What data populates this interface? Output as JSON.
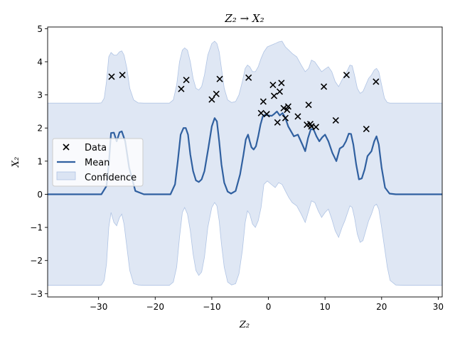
{
  "chart_data": {
    "type": "line",
    "title": "Z₂ → X₂",
    "xlabel": "Z₂",
    "ylabel": "X₂",
    "xlim": [
      -39,
      30.7
    ],
    "ylim": [
      -3.1,
      5.05
    ],
    "xticks": [
      -30,
      -20,
      -10,
      0,
      10,
      20,
      30
    ],
    "yticks": [
      -3,
      -2,
      -1,
      0,
      1,
      2,
      3,
      4,
      5
    ],
    "xtick_labels": [
      "−30",
      "−20",
      "−10",
      "0",
      "10",
      "20",
      "30"
    ],
    "ytick_labels": [
      "−3",
      "−2",
      "−1",
      "0",
      "1",
      "2",
      "3",
      "4",
      "5"
    ],
    "grid": false,
    "legend_position": "center-left",
    "legend": [
      {
        "kind": "marker",
        "label": "Data"
      },
      {
        "kind": "line",
        "label": "Mean"
      },
      {
        "kind": "patch",
        "label": "Confidence"
      }
    ],
    "colors": {
      "mean": "#3060a0",
      "confidence": "#b0c4e4",
      "data": "#000000"
    },
    "series": [
      {
        "name": "Data",
        "type": "scatter",
        "points": [
          [
            -27.7,
            3.55
          ],
          [
            -25.8,
            3.6
          ],
          [
            -15.4,
            3.18
          ],
          [
            -14.5,
            3.45
          ],
          [
            -10,
            2.86
          ],
          [
            -9.2,
            3.03
          ],
          [
            -8.6,
            3.48
          ],
          [
            -3.5,
            3.52
          ],
          [
            -1.3,
            2.45
          ],
          [
            -0.9,
            2.8
          ],
          [
            -0.3,
            2.42
          ],
          [
            0.8,
            3.3
          ],
          [
            1.0,
            2.97
          ],
          [
            1.6,
            2.17
          ],
          [
            2.0,
            3.1
          ],
          [
            2.3,
            3.36
          ],
          [
            2.7,
            2.6
          ],
          [
            3.0,
            2.3
          ],
          [
            3.3,
            2.55
          ],
          [
            3.5,
            2.65
          ],
          [
            5.2,
            2.35
          ],
          [
            6.8,
            2.1
          ],
          [
            7.1,
            2.7
          ],
          [
            7.4,
            2.12
          ],
          [
            7.6,
            2.05
          ],
          [
            8.4,
            2.03
          ],
          [
            9.8,
            3.25
          ],
          [
            11.9,
            2.23
          ],
          [
            13.8,
            3.6
          ],
          [
            17.3,
            1.97
          ],
          [
            19.0,
            3.4
          ]
        ]
      },
      {
        "name": "Mean",
        "type": "line",
        "x": [
          -39,
          -29.5,
          -28.6,
          -28.2,
          -27.8,
          -27.3,
          -26.8,
          -26.3,
          -25.9,
          -25.3,
          -24.6,
          -23.5,
          -22,
          -17.3,
          -16.5,
          -16,
          -15.5,
          -15,
          -14.6,
          -14.2,
          -13.8,
          -13.3,
          -12.8,
          -12.3,
          -11.8,
          -11.3,
          -10.6,
          -10,
          -9.5,
          -9.1,
          -8.7,
          -8.3,
          -7.8,
          -7.2,
          -6.6,
          -5.8,
          -5,
          -4.4,
          -4,
          -3.6,
          -3.3,
          -3,
          -2.6,
          -2.2,
          -1.8,
          -1.4,
          -1,
          -0.6,
          0,
          0.6,
          1,
          1.5,
          2,
          2.5,
          3,
          3.5,
          4,
          4.5,
          5.2,
          6,
          6.5,
          7,
          7.5,
          8,
          8.5,
          9,
          9.5,
          10,
          10.6,
          11.3,
          12,
          12.6,
          13.2,
          13.7,
          14.2,
          14.6,
          15,
          15.5,
          16,
          16.5,
          17,
          17.5,
          18.2,
          18.7,
          19.1,
          19.5,
          20,
          20.6,
          21.4,
          22.5,
          24,
          30.7
        ],
        "y": [
          0,
          0,
          0.25,
          0.9,
          1.85,
          1.86,
          1.6,
          1.87,
          1.9,
          1.6,
          0.8,
          0.1,
          0,
          0,
          0.3,
          1.0,
          1.8,
          2.0,
          2.0,
          1.8,
          1.2,
          0.7,
          0.42,
          0.37,
          0.45,
          0.7,
          1.4,
          2.05,
          2.3,
          2.2,
          1.6,
          0.9,
          0.35,
          0.08,
          0.02,
          0.1,
          0.6,
          1.2,
          1.65,
          1.8,
          1.6,
          1.42,
          1.35,
          1.45,
          1.75,
          2.1,
          2.35,
          2.4,
          2.38,
          2.37,
          2.42,
          2.5,
          2.38,
          2.45,
          2.3,
          2.05,
          1.9,
          1.75,
          1.8,
          1.5,
          1.3,
          1.7,
          1.97,
          1.95,
          1.75,
          1.6,
          1.72,
          1.8,
          1.6,
          1.25,
          1.0,
          1.38,
          1.45,
          1.6,
          1.83,
          1.82,
          1.5,
          0.9,
          0.45,
          0.48,
          0.75,
          1.15,
          1.3,
          1.6,
          1.75,
          1.5,
          0.8,
          0.2,
          0.02,
          0,
          0,
          0
        ]
      },
      {
        "name": "Confidence",
        "type": "band",
        "x": [
          -39,
          -30,
          -29.5,
          -29,
          -28.6,
          -28.2,
          -27.8,
          -27.3,
          -26.8,
          -26.3,
          -25.9,
          -25.5,
          -25,
          -24.5,
          -23.8,
          -23,
          -22,
          -17.5,
          -16.8,
          -16.2,
          -15.7,
          -15.2,
          -14.8,
          -14.3,
          -13.8,
          -13.3,
          -12.8,
          -12.3,
          -11.8,
          -11.3,
          -10.7,
          -10,
          -9.5,
          -9.1,
          -8.7,
          -8.3,
          -7.8,
          -7.2,
          -6.5,
          -5.8,
          -5.2,
          -4.6,
          -4.1,
          -3.7,
          -3.3,
          -2.8,
          -2.3,
          -1.8,
          -1.3,
          -0.8,
          -0.2,
          0.5,
          1.2,
          1.8,
          2.4,
          3.0,
          3.6,
          4.2,
          5.0,
          5.8,
          6.5,
          7.1,
          7.6,
          8.2,
          8.8,
          9.4,
          10,
          10.6,
          11.2,
          11.8,
          12.4,
          13.0,
          13.5,
          14.0,
          14.4,
          14.8,
          15.2,
          15.7,
          16.2,
          16.7,
          17.2,
          17.7,
          18.2,
          18.7,
          19.1,
          19.5,
          20,
          20.5,
          21,
          21.5,
          22.5,
          24,
          30.7
        ],
        "upper": [
          2.75,
          2.75,
          2.76,
          2.9,
          3.4,
          4.15,
          4.28,
          4.2,
          4.2,
          4.3,
          4.33,
          4.2,
          3.8,
          3.2,
          2.85,
          2.76,
          2.75,
          2.75,
          2.85,
          3.3,
          4.0,
          4.35,
          4.42,
          4.35,
          4.0,
          3.5,
          3.2,
          3.15,
          3.25,
          3.6,
          4.2,
          4.55,
          4.62,
          4.55,
          4.3,
          3.8,
          3.2,
          2.85,
          2.77,
          2.8,
          3.0,
          3.4,
          3.8,
          3.9,
          3.85,
          3.7,
          3.7,
          3.85,
          4.1,
          4.3,
          4.45,
          4.5,
          4.55,
          4.6,
          4.62,
          4.45,
          4.35,
          4.25,
          4.15,
          3.9,
          3.7,
          3.8,
          4.05,
          4.0,
          3.85,
          3.7,
          3.78,
          3.85,
          3.7,
          3.4,
          3.25,
          3.45,
          3.6,
          3.75,
          3.9,
          3.88,
          3.6,
          3.2,
          3.05,
          3.1,
          3.3,
          3.5,
          3.6,
          3.75,
          3.8,
          3.7,
          3.3,
          2.9,
          2.77,
          2.75,
          2.75,
          2.75,
          2.75
        ],
        "lower": [
          -2.75,
          -2.75,
          -2.74,
          -2.6,
          -2.1,
          -1.0,
          -0.55,
          -0.85,
          -0.95,
          -0.7,
          -0.6,
          -0.9,
          -1.6,
          -2.3,
          -2.7,
          -2.74,
          -2.75,
          -2.75,
          -2.65,
          -2.2,
          -1.3,
          -0.55,
          -0.4,
          -0.6,
          -1.1,
          -1.8,
          -2.3,
          -2.45,
          -2.35,
          -1.9,
          -1.0,
          -0.4,
          -0.25,
          -0.35,
          -0.8,
          -1.5,
          -2.2,
          -2.65,
          -2.74,
          -2.7,
          -2.4,
          -1.7,
          -0.85,
          -0.5,
          -0.6,
          -0.9,
          -1.0,
          -0.8,
          -0.4,
          0.3,
          0.4,
          0.3,
          0.2,
          0.35,
          0.3,
          0.1,
          -0.1,
          -0.25,
          -0.35,
          -0.6,
          -0.85,
          -0.5,
          -0.2,
          -0.25,
          -0.5,
          -0.7,
          -0.55,
          -0.45,
          -0.75,
          -1.1,
          -1.3,
          -1.0,
          -0.8,
          -0.55,
          -0.35,
          -0.4,
          -0.7,
          -1.2,
          -1.45,
          -1.4,
          -1.1,
          -0.8,
          -0.6,
          -0.35,
          -0.3,
          -0.45,
          -1.0,
          -1.6,
          -2.2,
          -2.6,
          -2.74,
          -2.75,
          -2.75
        ]
      }
    ]
  }
}
